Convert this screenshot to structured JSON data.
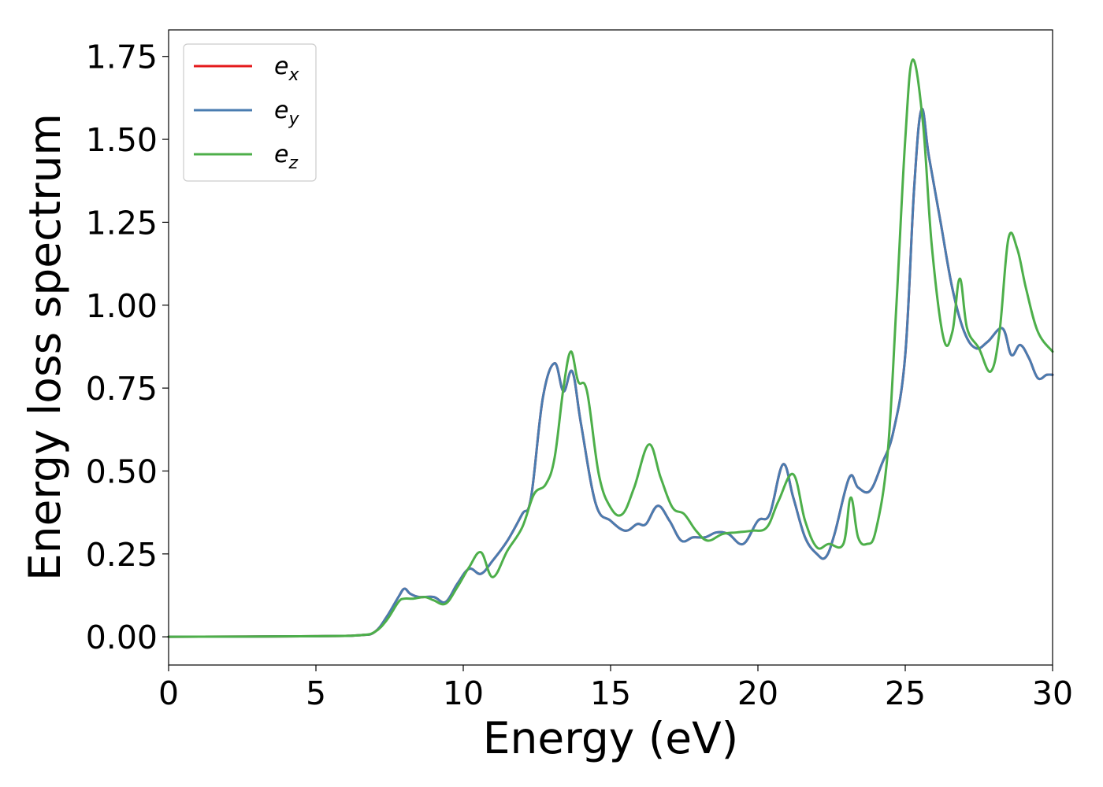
{
  "chart_data": {
    "type": "line",
    "xlabel": "Energy (eV)",
    "ylabel": "Energy loss spectrum",
    "xlim": [
      0,
      30
    ],
    "ylim": [
      -0.085,
      1.83
    ],
    "xticks": [
      0,
      5,
      10,
      15,
      20,
      25,
      30
    ],
    "xtick_labels": [
      "0",
      "5",
      "10",
      "15",
      "20",
      "25",
      "30"
    ],
    "yticks": [
      0,
      0.25,
      0.5,
      0.75,
      1.0,
      1.25,
      1.5,
      1.75
    ],
    "ytick_labels": [
      "0.00",
      "0.25",
      "0.50",
      "0.75",
      "1.00",
      "1.25",
      "1.50",
      "1.75"
    ],
    "grid": false,
    "legend_position": "top-left",
    "series": [
      {
        "name": "e",
        "subscript": "x",
        "color": "#e41a1c",
        "x": [
          0,
          5,
          6.5,
          7,
          7.4,
          7.8,
          8.0,
          8.2,
          8.5,
          9.0,
          9.4,
          9.8,
          10.2,
          10.6,
          11.0,
          11.5,
          12.0,
          12.3,
          12.7,
          13.1,
          13.4,
          13.7,
          14.0,
          14.5,
          15.0,
          15.5,
          15.9,
          16.2,
          16.6,
          17.0,
          17.4,
          17.8,
          18.2,
          18.6,
          19.0,
          19.5,
          20.0,
          20.4,
          20.85,
          21.2,
          21.6,
          22.0,
          22.3,
          22.6,
          23.1,
          23.4,
          23.8,
          24.2,
          24.6,
          25.0,
          25.3,
          25.55,
          25.8,
          26.2,
          26.6,
          27.0,
          27.4,
          27.8,
          28.3,
          28.6,
          28.9,
          29.2,
          29.5,
          29.8,
          30.0
        ],
        "y": [
          0,
          0.002,
          0.005,
          0.015,
          0.06,
          0.12,
          0.145,
          0.13,
          0.12,
          0.12,
          0.105,
          0.16,
          0.205,
          0.19,
          0.23,
          0.29,
          0.37,
          0.42,
          0.72,
          0.825,
          0.74,
          0.8,
          0.64,
          0.4,
          0.35,
          0.32,
          0.34,
          0.34,
          0.395,
          0.35,
          0.29,
          0.3,
          0.3,
          0.315,
          0.31,
          0.28,
          0.35,
          0.37,
          0.52,
          0.42,
          0.3,
          0.25,
          0.24,
          0.31,
          0.48,
          0.45,
          0.44,
          0.52,
          0.62,
          0.85,
          1.35,
          1.59,
          1.45,
          1.25,
          1.05,
          0.92,
          0.87,
          0.89,
          0.93,
          0.85,
          0.88,
          0.84,
          0.78,
          0.79,
          0.79
        ]
      },
      {
        "name": "e",
        "subscript": "y",
        "color": "#4a7cb0",
        "x": [
          0,
          5,
          6.5,
          7,
          7.4,
          7.8,
          8.0,
          8.2,
          8.5,
          9.0,
          9.4,
          9.8,
          10.2,
          10.6,
          11.0,
          11.5,
          12.0,
          12.3,
          12.7,
          13.1,
          13.4,
          13.7,
          14.0,
          14.5,
          15.0,
          15.5,
          15.9,
          16.2,
          16.6,
          17.0,
          17.4,
          17.8,
          18.2,
          18.6,
          19.0,
          19.5,
          20.0,
          20.4,
          20.85,
          21.2,
          21.6,
          22.0,
          22.3,
          22.6,
          23.1,
          23.4,
          23.8,
          24.2,
          24.6,
          25.0,
          25.3,
          25.55,
          25.8,
          26.2,
          26.6,
          27.0,
          27.4,
          27.8,
          28.3,
          28.6,
          28.9,
          29.2,
          29.5,
          29.8,
          30.0
        ],
        "y": [
          0,
          0.002,
          0.005,
          0.015,
          0.06,
          0.12,
          0.145,
          0.13,
          0.12,
          0.12,
          0.105,
          0.16,
          0.205,
          0.19,
          0.23,
          0.29,
          0.37,
          0.42,
          0.72,
          0.825,
          0.74,
          0.8,
          0.64,
          0.4,
          0.35,
          0.32,
          0.34,
          0.34,
          0.395,
          0.35,
          0.29,
          0.3,
          0.3,
          0.315,
          0.31,
          0.28,
          0.35,
          0.37,
          0.52,
          0.42,
          0.3,
          0.25,
          0.24,
          0.31,
          0.48,
          0.45,
          0.44,
          0.52,
          0.62,
          0.85,
          1.35,
          1.59,
          1.45,
          1.25,
          1.05,
          0.92,
          0.87,
          0.89,
          0.93,
          0.85,
          0.88,
          0.84,
          0.78,
          0.79,
          0.79
        ]
      },
      {
        "name": "e",
        "subscript": "z",
        "color": "#4daf4a",
        "x": [
          0,
          5,
          6.5,
          7,
          7.4,
          7.8,
          8.0,
          8.3,
          8.7,
          9.0,
          9.4,
          9.8,
          10.2,
          10.6,
          11.0,
          11.5,
          12.0,
          12.4,
          12.8,
          13.1,
          13.4,
          13.65,
          13.9,
          14.2,
          14.6,
          15.0,
          15.4,
          15.8,
          16.3,
          16.7,
          17.1,
          17.5,
          17.9,
          18.3,
          18.8,
          19.3,
          19.8,
          20.3,
          20.7,
          21.2,
          21.6,
          22.0,
          22.4,
          22.9,
          23.15,
          23.4,
          23.7,
          24.0,
          24.4,
          24.7,
          25.0,
          25.25,
          25.6,
          25.9,
          26.3,
          26.6,
          26.85,
          27.1,
          27.5,
          27.9,
          28.2,
          28.5,
          28.8,
          29.1,
          29.5,
          30.0
        ],
        "y": [
          0,
          0.002,
          0.005,
          0.015,
          0.05,
          0.105,
          0.115,
          0.115,
          0.12,
          0.11,
          0.1,
          0.15,
          0.21,
          0.255,
          0.18,
          0.26,
          0.33,
          0.43,
          0.46,
          0.54,
          0.75,
          0.86,
          0.77,
          0.74,
          0.49,
          0.39,
          0.37,
          0.45,
          0.58,
          0.48,
          0.39,
          0.37,
          0.32,
          0.29,
          0.31,
          0.315,
          0.32,
          0.33,
          0.41,
          0.49,
          0.35,
          0.27,
          0.28,
          0.28,
          0.42,
          0.3,
          0.28,
          0.32,
          0.55,
          1.0,
          1.5,
          1.74,
          1.55,
          1.18,
          0.9,
          0.92,
          1.08,
          0.93,
          0.87,
          0.8,
          0.92,
          1.2,
          1.17,
          1.05,
          0.92,
          0.86
        ]
      }
    ]
  }
}
